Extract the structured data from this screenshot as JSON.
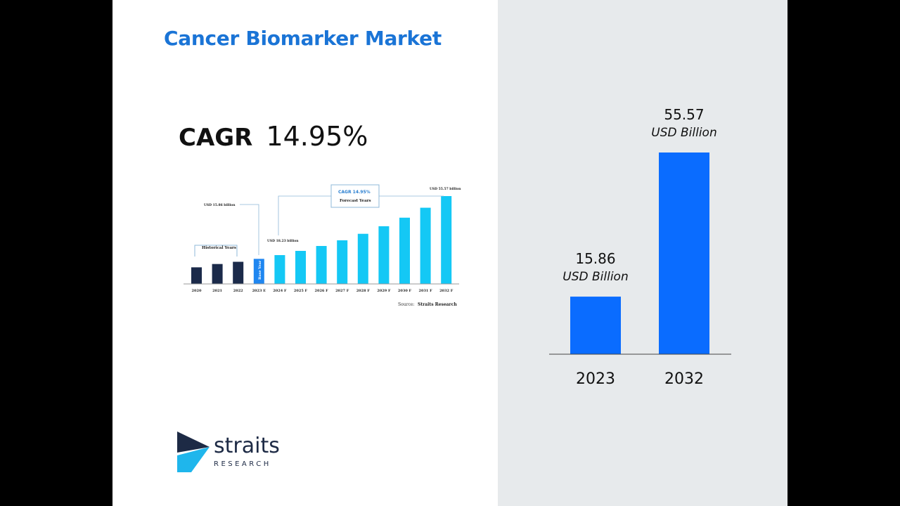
{
  "title": "Cancer Biomarker Market",
  "cagr": {
    "label": "CAGR",
    "value": "14.95%"
  },
  "logo": {
    "name": "straits",
    "sub": "RESEARCH"
  },
  "colors": {
    "title": "#1a74d6",
    "bar_main": "#0a6cff",
    "bar_dark": "#1b2a4a",
    "bar_light": "#14c8f5",
    "bar_base": "#1f86f0"
  },
  "chart_data": [
    {
      "type": "bar",
      "categories": [
        "2020",
        "2021",
        "2022",
        "2023 E",
        "2024 F",
        "2025 F",
        "2026 F",
        "2027 F",
        "2028 F",
        "2029 F",
        "2030 F",
        "2031 F",
        "2032 F"
      ],
      "values": [
        10.5,
        12.6,
        14.0,
        15.86,
        18.23,
        20.9,
        24.0,
        27.6,
        31.7,
        36.5,
        41.9,
        48.2,
        55.57
      ],
      "annotations": {
        "historical": "Historical Years",
        "base_year": "Base Year",
        "cagr_box": "CAGR 14.95%",
        "forecast": "Forecast Years",
        "label_2023": "USD 15.86 billion",
        "label_2024": "USD 18.23 billion",
        "label_2032": "USD 55.57 billion",
        "source_label": "Source:",
        "source": "Straits Research"
      }
    },
    {
      "type": "bar",
      "categories": [
        "2023",
        "2032"
      ],
      "values": [
        15.86,
        55.57
      ],
      "value_labels": [
        "15.86",
        "55.57"
      ],
      "unit_label": "USD Billion"
    }
  ]
}
